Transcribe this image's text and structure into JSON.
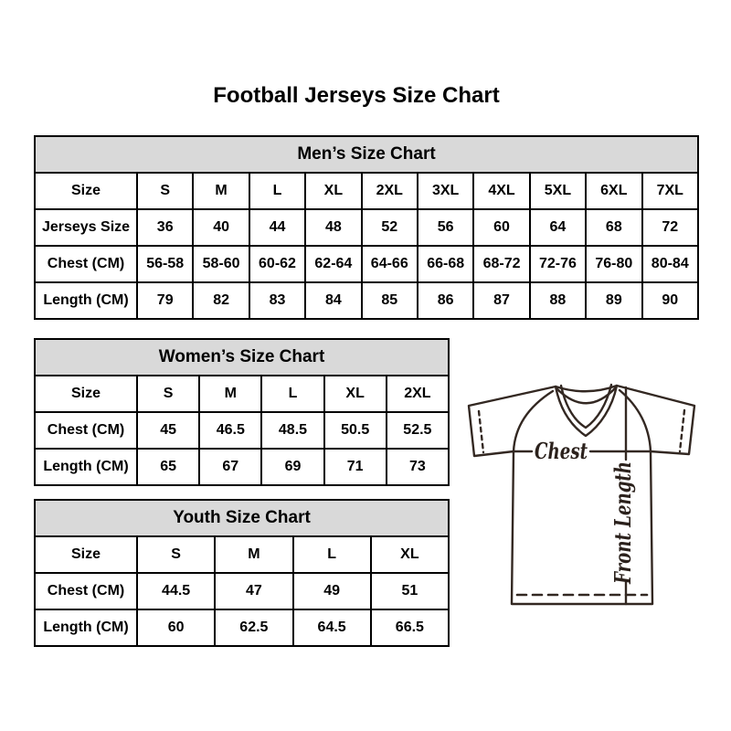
{
  "page": {
    "title": "Football Jerseys Size Chart"
  },
  "colors": {
    "header_bg": "#d9d9d9",
    "table_border": "#000000",
    "jersey_stroke": "#332822",
    "jersey_label": "#2b211c"
  },
  "tables": [
    {
      "id": "mens",
      "title": "Men’s Size Chart",
      "rows": [
        [
          "Size",
          "S",
          "M",
          "L",
          "XL",
          "2XL",
          "3XL",
          "4XL",
          "5XL",
          "6XL",
          "7XL"
        ],
        [
          "Jerseys Size",
          "36",
          "40",
          "44",
          "48",
          "52",
          "56",
          "60",
          "64",
          "68",
          "72"
        ],
        [
          "Chest (CM)",
          "56-58",
          "58-60",
          "60-62",
          "62-64",
          "64-66",
          "66-68",
          "68-72",
          "72-76",
          "76-80",
          "80-84"
        ],
        [
          "Length (CM)",
          "79",
          "82",
          "83",
          "84",
          "85",
          "86",
          "87",
          "88",
          "89",
          "90"
        ]
      ]
    },
    {
      "id": "womens",
      "title": "Women’s Size Chart",
      "rows": [
        [
          "Size",
          "S",
          "M",
          "L",
          "XL",
          "2XL"
        ],
        [
          "Chest (CM)",
          "45",
          "46.5",
          "48.5",
          "50.5",
          "52.5"
        ],
        [
          "Length (CM)",
          "65",
          "67",
          "69",
          "71",
          "73"
        ]
      ]
    },
    {
      "id": "youth",
      "title": "Youth Size Chart",
      "rows": [
        [
          "Size",
          "S",
          "M",
          "L",
          "XL"
        ],
        [
          "Chest (CM)",
          "44.5",
          "47",
          "49",
          "51"
        ],
        [
          "Length (CM)",
          "60",
          "62.5",
          "64.5",
          "66.5"
        ]
      ]
    }
  ],
  "diagram": {
    "chest_label": "Chest",
    "front_length_label": "Front Length"
  }
}
